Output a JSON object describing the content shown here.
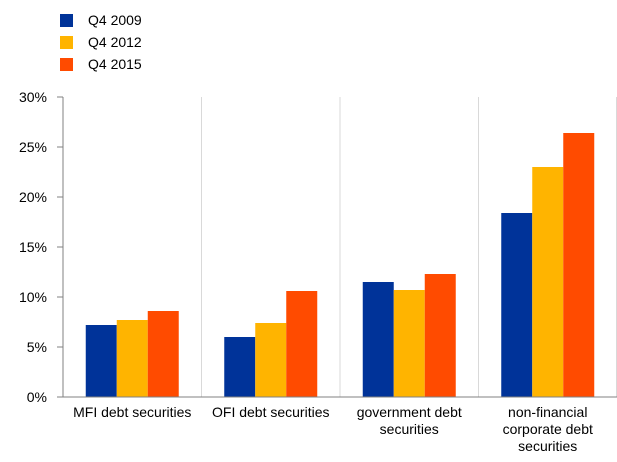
{
  "chart_data": {
    "type": "bar",
    "title": "",
    "xlabel": "",
    "ylabel": "",
    "ylim": [
      0,
      30
    ],
    "yticks": [
      0,
      5,
      10,
      15,
      20,
      25,
      30
    ],
    "ytick_labels": [
      "0%",
      "5%",
      "10%",
      "15%",
      "20%",
      "25%",
      "30%"
    ],
    "y_unit": "%",
    "grid": "vertical category separators",
    "legend_position": "top-left",
    "categories": [
      [
        "MFI debt securities"
      ],
      [
        "OFI debt securities"
      ],
      [
        "government debt",
        "securities"
      ],
      [
        "non-financial",
        "corporate debt",
        "securities"
      ]
    ],
    "series": [
      {
        "name": "Q4 2009",
        "color": "#003399",
        "values": [
          7.2,
          6.0,
          11.5,
          18.4
        ]
      },
      {
        "name": "Q4 2012",
        "color": "#FFB400",
        "values": [
          7.7,
          7.4,
          10.7,
          23.0
        ]
      },
      {
        "name": "Q4 2015",
        "color": "#FF4B00",
        "values": [
          8.6,
          10.6,
          12.3,
          26.4
        ]
      }
    ]
  }
}
